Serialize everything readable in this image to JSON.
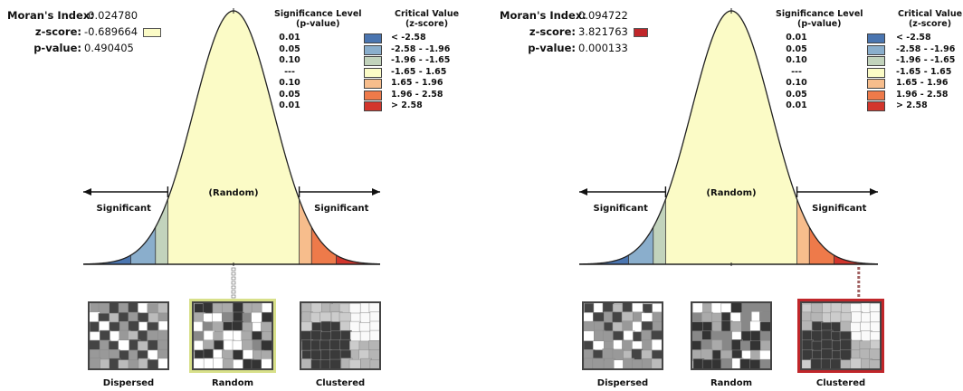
{
  "panels": [
    {
      "morans_label": "Moran's Index:",
      "morans_value": "-0.024780",
      "z_label": "z-score:",
      "z_value": "-0.689664",
      "p_label": "p-value:",
      "p_value": "0.490405",
      "z_swatch_color": "#fbfbc6",
      "selected_pattern": "Random"
    },
    {
      "morans_label": "Moran's Index:",
      "morans_value": "0.094722",
      "z_label": "z-score:",
      "z_value": "3.821763",
      "p_label": "p-value:",
      "p_value": "0.000133",
      "z_swatch_color": "#c0262a",
      "selected_pattern": "Clustered"
    }
  ],
  "legend": {
    "sig_header_1": "Significance Level",
    "sig_header_2": "(p-value)",
    "crit_header_1": "Critical Value",
    "crit_header_2": "(z-score)",
    "rows": [
      {
        "sig": "0.01",
        "crit": "< -2.58",
        "color": "#4a75b0"
      },
      {
        "sig": "0.05",
        "crit": "-2.58 - -1.96",
        "color": "#8aaecc"
      },
      {
        "sig": "0.10",
        "crit": "-1.96 - -1.65",
        "color": "#c2d3bc"
      },
      {
        "sig": "---",
        "crit": "-1.65 - 1.65",
        "color": "#fbfbc6"
      },
      {
        "sig": "0.10",
        "crit": "1.65 - 1.96",
        "color": "#f7bd8c"
      },
      {
        "sig": "0.05",
        "crit": "1.96 - 2.58",
        "color": "#ee7a4a"
      },
      {
        "sig": "0.01",
        "crit": "> 2.58",
        "color": "#d2352c"
      }
    ]
  },
  "curve_labels": {
    "random": "(Random)",
    "significant_left": "Significant",
    "significant_right": "Significant"
  },
  "patterns": [
    "Dispersed",
    "Random",
    "Clustered"
  ],
  "chart_data": [
    {
      "type": "area",
      "xlabel": "",
      "ylabel": "",
      "z_score": -0.689664,
      "p_value": 0.490405,
      "morans_index": -0.02478,
      "bands": [
        {
          "from": null,
          "to": -2.58,
          "p": "0.01"
        },
        {
          "from": -2.58,
          "to": -1.96,
          "p": "0.05"
        },
        {
          "from": -1.96,
          "to": -1.65,
          "p": "0.10"
        },
        {
          "from": -1.65,
          "to": 1.65,
          "p": "---"
        },
        {
          "from": 1.65,
          "to": 1.96,
          "p": "0.10"
        },
        {
          "from": 1.96,
          "to": 2.58,
          "p": "0.05"
        },
        {
          "from": 2.58,
          "to": null,
          "p": "0.01"
        }
      ],
      "result": "Random"
    },
    {
      "type": "area",
      "xlabel": "",
      "ylabel": "",
      "z_score": 3.821763,
      "p_value": 0.000133,
      "morans_index": 0.094722,
      "bands": [
        {
          "from": null,
          "to": -2.58,
          "p": "0.01"
        },
        {
          "from": -2.58,
          "to": -1.96,
          "p": "0.05"
        },
        {
          "from": -1.96,
          "to": -1.65,
          "p": "0.10"
        },
        {
          "from": -1.65,
          "to": 1.65,
          "p": "---"
        },
        {
          "from": 1.65,
          "to": 1.96,
          "p": "0.10"
        },
        {
          "from": 1.96,
          "to": 2.58,
          "p": "0.05"
        },
        {
          "from": 2.58,
          "to": null,
          "p": "0.01"
        }
      ],
      "result": "Clustered"
    }
  ]
}
